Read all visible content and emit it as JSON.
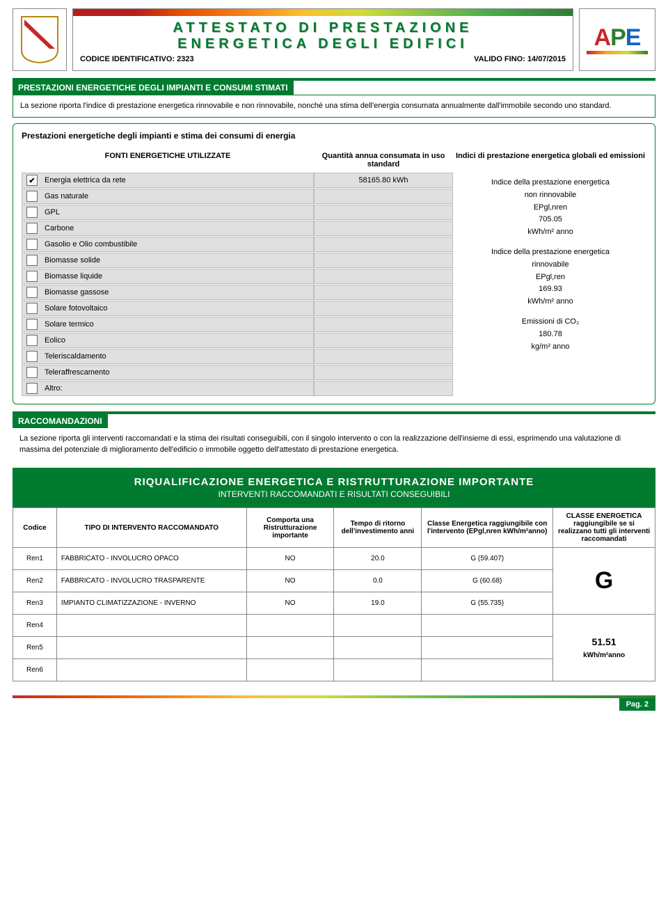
{
  "header": {
    "title_line1": "ATTESTATO DI PRESTAZIONE",
    "title_line2": "ENERGETICA DEGLI EDIFICI",
    "codice_label": "CODICE IDENTIFICATIVO:",
    "codice_value": "2323",
    "valido_label": "VALIDO FINO:",
    "valido_value": "14/07/2015",
    "ape_a": "A",
    "ape_p": "P",
    "ape_e": "E"
  },
  "sec1": {
    "title": "PRESTAZIONI ENERGETICHE DEGLI IMPIANTI E CONSUMI STIMATI",
    "text": "La sezione riporta l'indice di prestazione energetica rinnovabile e non rinnovabile, nonché una stima dell'energia consumata annualmente dall'immobile secondo uno standard."
  },
  "prest": {
    "title": "Prestazioni energetiche degli impianti e stima dei consumi di energia",
    "col1": "FONTI ENERGETICHE UTILIZZATE",
    "col2": "Quantità annua consumata in uso standard",
    "col3": "Indici di prestazione energetica globali ed emissioni",
    "fonti": [
      {
        "label": "Energia elettrica da rete",
        "checked": true,
        "qty": "58165.80 kWh"
      },
      {
        "label": "Gas naturale",
        "checked": false,
        "qty": ""
      },
      {
        "label": "GPL",
        "checked": false,
        "qty": ""
      },
      {
        "label": "Carbone",
        "checked": false,
        "qty": ""
      },
      {
        "label": "Gasolio e Olio combustibile",
        "checked": false,
        "qty": ""
      },
      {
        "label": "Biomasse solide",
        "checked": false,
        "qty": ""
      },
      {
        "label": "Biomasse liquide",
        "checked": false,
        "qty": ""
      },
      {
        "label": "Biomasse gassose",
        "checked": false,
        "qty": ""
      },
      {
        "label": "Solare fotovoltaico",
        "checked": false,
        "qty": ""
      },
      {
        "label": "Solare termico",
        "checked": false,
        "qty": ""
      },
      {
        "label": "Eolico",
        "checked": false,
        "qty": ""
      },
      {
        "label": "Teleriscaldamento",
        "checked": false,
        "qty": ""
      },
      {
        "label": "Teleraffrescamento",
        "checked": false,
        "qty": ""
      },
      {
        "label": "Altro:",
        "checked": false,
        "qty": ""
      }
    ],
    "indici": {
      "b1_l1": "Indice della prestazione energetica",
      "b1_l2": "non rinnovabile",
      "b1_l3": "EPgl,nren",
      "b1_val": "705.05",
      "b1_unit": "kWh/m² anno",
      "b2_l1": "Indice della prestazione energetica",
      "b2_l2": "rinnovabile",
      "b2_l3": "EPgl,ren",
      "b2_val": "169.93",
      "b2_unit": "kWh/m² anno",
      "b3_l1": "Emissioni di CO₂",
      "b3_val": "180.78",
      "b3_unit": "kg/m² anno"
    }
  },
  "racc": {
    "title": "RACCOMANDAZIONI",
    "text": "La sezione riporta gli interventi raccomandati e la stima dei risultati conseguibili, con il singolo intervento o con la realizzazione dell'insieme di essi, esprimendo una valutazione di massima del potenziale di miglioramento dell'edificio o immobile oggetto dell'attestato di prestazione energetica."
  },
  "riq": {
    "main": "RIQUALIFICAZIONE ENERGETICA E RISTRUTTURAZIONE IMPORTANTE",
    "sub": "INTERVENTI RACCOMANDATI E RISULTATI CONSEGUIBILI"
  },
  "table": {
    "h_codice": "Codice",
    "h_tipo": "TIPO DI INTERVENTO RACCOMANDATO",
    "h_comporta": "Comporta una Ristrutturazione importante",
    "h_tempo": "Tempo di ritorno dell'investimento anni",
    "h_classe": "Classe Energetica raggiungibile con l'intervento (EPgl,nren kWh/m²anno)",
    "h_classe_tot": "CLASSE ENERGETICA raggiungibile se si realizzano tutti gli interventi raccomandati",
    "rows": [
      {
        "cod": "Ren1",
        "tipo": "FABBRICATO - INVOLUCRO OPACO",
        "comp": "NO",
        "tempo": "20.0",
        "classe": "G (59.407)"
      },
      {
        "cod": "Ren2",
        "tipo": "FABBRICATO - INVOLUCRO TRASPARENTE",
        "comp": "NO",
        "tempo": "0.0",
        "classe": "G (60.68)"
      },
      {
        "cod": "Ren3",
        "tipo": "IMPIANTO CLIMATIZZAZIONE - INVERNO",
        "comp": "NO",
        "tempo": "19.0",
        "classe": "G (55.735)"
      },
      {
        "cod": "Ren4",
        "tipo": "",
        "comp": "",
        "tempo": "",
        "classe": ""
      },
      {
        "cod": "Ren5",
        "tipo": "",
        "comp": "",
        "tempo": "",
        "classe": ""
      },
      {
        "cod": "Ren6",
        "tipo": "",
        "comp": "",
        "tempo": "",
        "classe": ""
      }
    ],
    "result_class": "G",
    "result_val": "51.51",
    "result_unit": "kWh/m²anno"
  },
  "footer": {
    "page": "Pag. 2"
  }
}
